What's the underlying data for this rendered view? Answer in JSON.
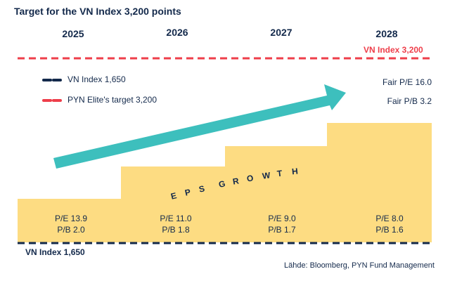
{
  "title": "Target for the VN Index 3,200 points",
  "years": [
    "2025",
    "2026",
    "2027",
    "2028"
  ],
  "target_label": "VN Index 3,200",
  "base_label": "VN Index 1,650",
  "legend": [
    {
      "label": "VN Index 1,650",
      "color": "#13294b"
    },
    {
      "label": "PYN Elite's target 3,200",
      "color": "#ee3e4a"
    }
  ],
  "fair": {
    "pe": "Fair P/E 16.0",
    "pb": "Fair P/B 3.2"
  },
  "steps": [
    {
      "pe": "P/E 13.9",
      "pb": "P/B 2.0"
    },
    {
      "pe": "P/E 11.0",
      "pb": "P/B 1.8"
    },
    {
      "pe": "P/E 9.0",
      "pb": "P/B 1.7"
    },
    {
      "pe": "P/E 8.0",
      "pb": "P/B 1.6"
    }
  ],
  "eps_label": [
    "E",
    "P",
    "S",
    "G",
    "R",
    "O",
    "W",
    "T",
    "H"
  ],
  "source": "Lähde: Bloomberg, PYN Fund Management",
  "colors": {
    "navy": "#13294b",
    "red": "#ee3e4a",
    "step": "#fddc82",
    "arrow": "#3dbfbd"
  }
}
